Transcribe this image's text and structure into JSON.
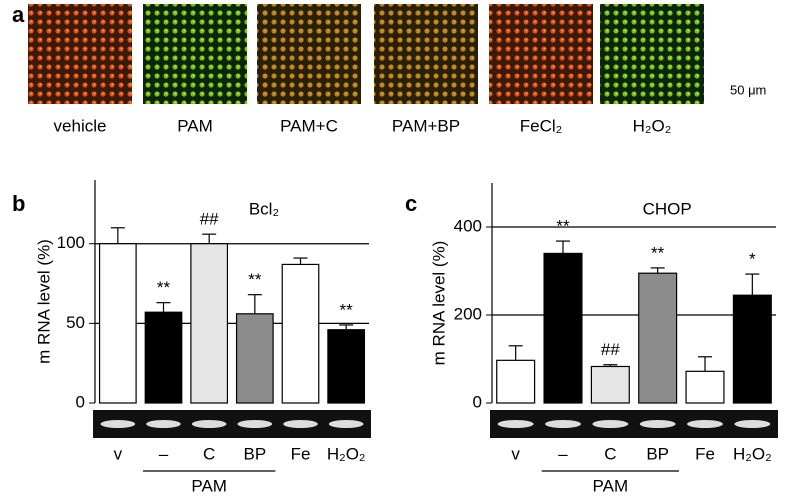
{
  "panel_a": {
    "label": "a",
    "images": [
      "vehicle",
      "PAM",
      "PAM+C",
      "PAM+BP",
      "FeCl₂",
      "H₂O₂"
    ],
    "scale_bar": "50 μm"
  },
  "chart_data": [
    {
      "type": "bar",
      "panel": "b",
      "title": "Bcl₂",
      "ylabel": "m RNA level (%)",
      "categories": [
        "v",
        "–",
        "C",
        "BP",
        "Fe",
        "H₂O₂"
      ],
      "group_label": "PAM",
      "values": [
        100,
        57,
        100,
        56,
        87,
        46
      ],
      "errors": [
        10,
        6,
        6,
        12,
        4,
        3
      ],
      "colors": [
        "#ffffff",
        "#000000",
        "#e6e6e6",
        "#8c8c8c",
        "#ffffff",
        "#000000"
      ],
      "annotations": [
        null,
        "**",
        "##",
        "**",
        null,
        "**"
      ],
      "ylim": [
        0,
        140
      ],
      "yticks": [
        0,
        50,
        100
      ],
      "grid": true
    },
    {
      "type": "bar",
      "panel": "c",
      "title": "CHOP",
      "ylabel": "m RNA level (%)",
      "categories": [
        "v",
        "–",
        "C",
        "BP",
        "Fe",
        "H₂O₂"
      ],
      "group_label": "PAM",
      "values": [
        97,
        340,
        83,
        295,
        72,
        245
      ],
      "errors": [
        33,
        28,
        4,
        12,
        33,
        48
      ],
      "colors": [
        "#ffffff",
        "#000000",
        "#e6e6e6",
        "#8c8c8c",
        "#ffffff",
        "#000000"
      ],
      "annotations": [
        null,
        "**",
        "##",
        "**",
        null,
        "*"
      ],
      "ylim": [
        0,
        500
      ],
      "yticks": [
        0,
        200,
        400
      ],
      "grid": true
    }
  ]
}
